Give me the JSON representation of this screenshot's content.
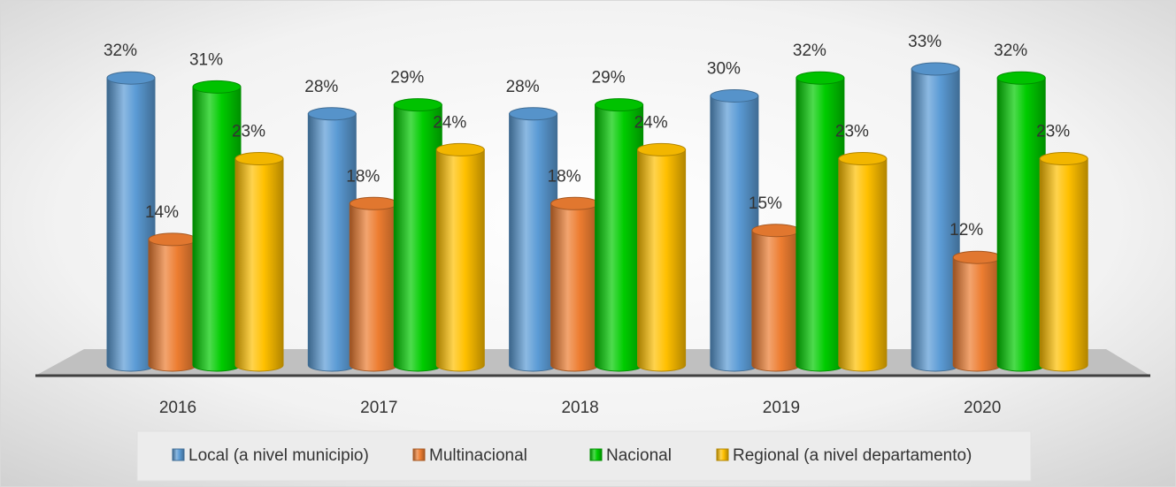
{
  "chart_data": {
    "type": "bar3d",
    "categories": [
      "2016",
      "2017",
      "2018",
      "2019",
      "2020"
    ],
    "series": [
      {
        "name": "Local (a nivel municipio)",
        "color": "#5b9bd5",
        "values": [
          32,
          28,
          28,
          30,
          33
        ],
        "value_labels": [
          "32%",
          "28%",
          "28%",
          "30%",
          "33%"
        ]
      },
      {
        "name": "Multinacional",
        "color": "#ed7d31",
        "values": [
          14,
          18,
          18,
          15,
          12
        ],
        "value_labels": [
          "14%",
          "18%",
          "18%",
          "15%",
          "12%"
        ]
      },
      {
        "name": "Nacional",
        "color": "#00cc00",
        "values": [
          31,
          29,
          29,
          32,
          32
        ],
        "value_labels": [
          "31%",
          "29%",
          "29%",
          "32%",
          "32%"
        ]
      },
      {
        "name": "Regional (a nivel departamento)",
        "color": "#ffc000",
        "values": [
          23,
          24,
          24,
          23,
          23
        ],
        "value_labels": [
          "23%",
          "24%",
          "24%",
          "23%",
          "23%"
        ]
      }
    ],
    "legend": "bottom"
  }
}
